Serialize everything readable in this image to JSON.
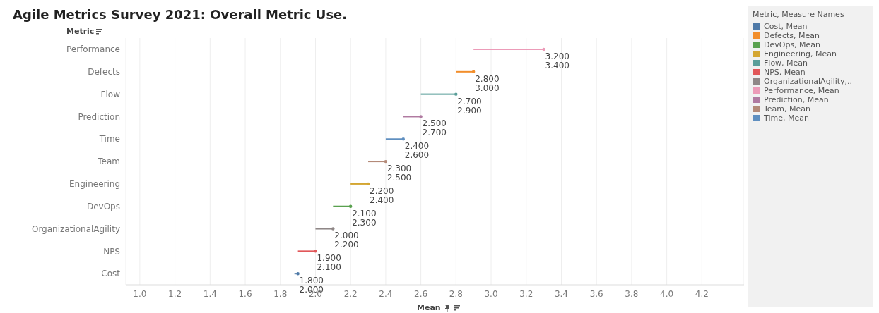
{
  "chart_data": {
    "type": "bar",
    "orientation": "horizontal",
    "title": "Agile Metrics Survey 2021: Overall Metric Use.",
    "xlabel": "Mean",
    "ylabel": "Metric",
    "legend_title": "Metric, Measure Names",
    "legend": "top right",
    "grid": "x",
    "categories": [
      "Performance",
      "Defects",
      "Flow",
      "Prediction",
      "Time",
      "Team",
      "Engineering",
      "DevOps",
      "OrganizationalAgility",
      "NPS",
      "Cost"
    ],
    "series": [
      {
        "name": "Cost, Mean",
        "color": "#4e79a7",
        "base": [
          null,
          null,
          null,
          null,
          null,
          null,
          null,
          null,
          null,
          null,
          1.88
        ],
        "values": [
          null,
          null,
          null,
          null,
          null,
          null,
          null,
          null,
          null,
          null,
          0.02
        ]
      },
      {
        "name": "Defects, Mean",
        "color": "#f28e2b",
        "base": [
          null,
          2.8,
          null,
          null,
          null,
          null,
          null,
          null,
          null,
          null,
          null
        ],
        "values": [
          null,
          0.1,
          null,
          null,
          null,
          null,
          null,
          null,
          null,
          null,
          null
        ]
      },
      {
        "name": "DevOps, Mean",
        "color": "#59a14f",
        "base": [
          null,
          null,
          null,
          null,
          null,
          null,
          null,
          2.1,
          null,
          null,
          null
        ],
        "values": [
          null,
          null,
          null,
          null,
          null,
          null,
          null,
          0.1,
          null,
          null,
          null
        ]
      },
      {
        "name": "Engineering, Mean",
        "color": "#d4a632",
        "base": [
          null,
          null,
          null,
          null,
          null,
          null,
          2.2,
          null,
          null,
          null,
          null
        ],
        "values": [
          null,
          null,
          null,
          null,
          null,
          null,
          0.1,
          null,
          null,
          null,
          null
        ]
      },
      {
        "name": "Flow, Mean",
        "color": "#5a9e99",
        "base": [
          null,
          null,
          2.6,
          null,
          null,
          null,
          null,
          null,
          null,
          null,
          null
        ],
        "values": [
          null,
          null,
          0.2,
          null,
          null,
          null,
          null,
          null,
          null,
          null,
          null
        ]
      },
      {
        "name": "NPS, Mean",
        "color": "#e15759",
        "base": [
          null,
          null,
          null,
          null,
          null,
          null,
          null,
          null,
          null,
          1.9,
          null
        ],
        "values": [
          null,
          null,
          null,
          null,
          null,
          null,
          null,
          null,
          null,
          0.1,
          null
        ]
      },
      {
        "name": "OrganizationalAgility,..",
        "color": "#8f8787",
        "base": [
          null,
          null,
          null,
          null,
          null,
          null,
          null,
          null,
          2.0,
          null,
          null
        ],
        "values": [
          null,
          null,
          null,
          null,
          null,
          null,
          null,
          null,
          0.1,
          null,
          null
        ]
      },
      {
        "name": "Performance, Mean",
        "color": "#ec9bb8",
        "base": [
          2.9,
          null,
          null,
          null,
          null,
          null,
          null,
          null,
          null,
          null,
          null
        ],
        "values": [
          0.4,
          null,
          null,
          null,
          null,
          null,
          null,
          null,
          null,
          null,
          null
        ]
      },
      {
        "name": "Prediction, Mean",
        "color": "#b07aa1",
        "base": [
          null,
          null,
          null,
          2.5,
          null,
          null,
          null,
          null,
          null,
          null,
          null
        ],
        "values": [
          null,
          null,
          null,
          0.1,
          null,
          null,
          null,
          null,
          null,
          null,
          null
        ]
      },
      {
        "name": "Team, Mean",
        "color": "#b48a78",
        "base": [
          null,
          null,
          null,
          null,
          null,
          2.3,
          null,
          null,
          null,
          null,
          null
        ],
        "values": [
          null,
          null,
          null,
          null,
          null,
          0.1,
          null,
          null,
          null,
          null,
          null
        ]
      },
      {
        "name": "Time, Mean",
        "color": "#5f8fc0",
        "base": [
          null,
          null,
          null,
          null,
          2.4,
          null,
          null,
          null,
          null,
          null,
          null
        ],
        "values": [
          null,
          null,
          null,
          null,
          0.1,
          null,
          null,
          null,
          null,
          null,
          null
        ]
      }
    ],
    "xlim": [
      0.92,
      4.44
    ],
    "xticks": [
      {
        "value": 1,
        "label": "1.0"
      },
      {
        "value": 1.2,
        "label": "1.2"
      },
      {
        "value": 1.4,
        "label": "1.4"
      },
      {
        "value": 1.6,
        "label": "1.6"
      },
      {
        "value": 1.8,
        "label": "1.8"
      },
      {
        "value": 2,
        "label": "2.0"
      },
      {
        "value": 2.2,
        "label": "2.2"
      },
      {
        "value": 2.4,
        "label": "2.4"
      },
      {
        "value": 2.6,
        "label": "2.6"
      },
      {
        "value": 2.8,
        "label": "2.8"
      },
      {
        "value": 3,
        "label": "3.0"
      },
      {
        "value": 3.2,
        "label": "3.2"
      },
      {
        "value": 3.4,
        "label": "3.4"
      },
      {
        "value": 3.6,
        "label": "3.6"
      },
      {
        "value": 3.8,
        "label": "3.8"
      },
      {
        "value": 4,
        "label": "4.0"
      },
      {
        "value": 4.2,
        "label": "4.2"
      }
    ],
    "annotations": [
      "3.200",
      "3.400",
      "2.800",
      "3.000",
      "2.700",
      "2.900",
      "2.500",
      "2.700",
      "2.400",
      "2.600",
      "2.300",
      "2.500",
      "2.200",
      "2.400",
      "2.100",
      "2.300",
      "2.000",
      "2.200",
      "1.900",
      "2.100",
      "1.800",
      "2.000"
    ]
  }
}
